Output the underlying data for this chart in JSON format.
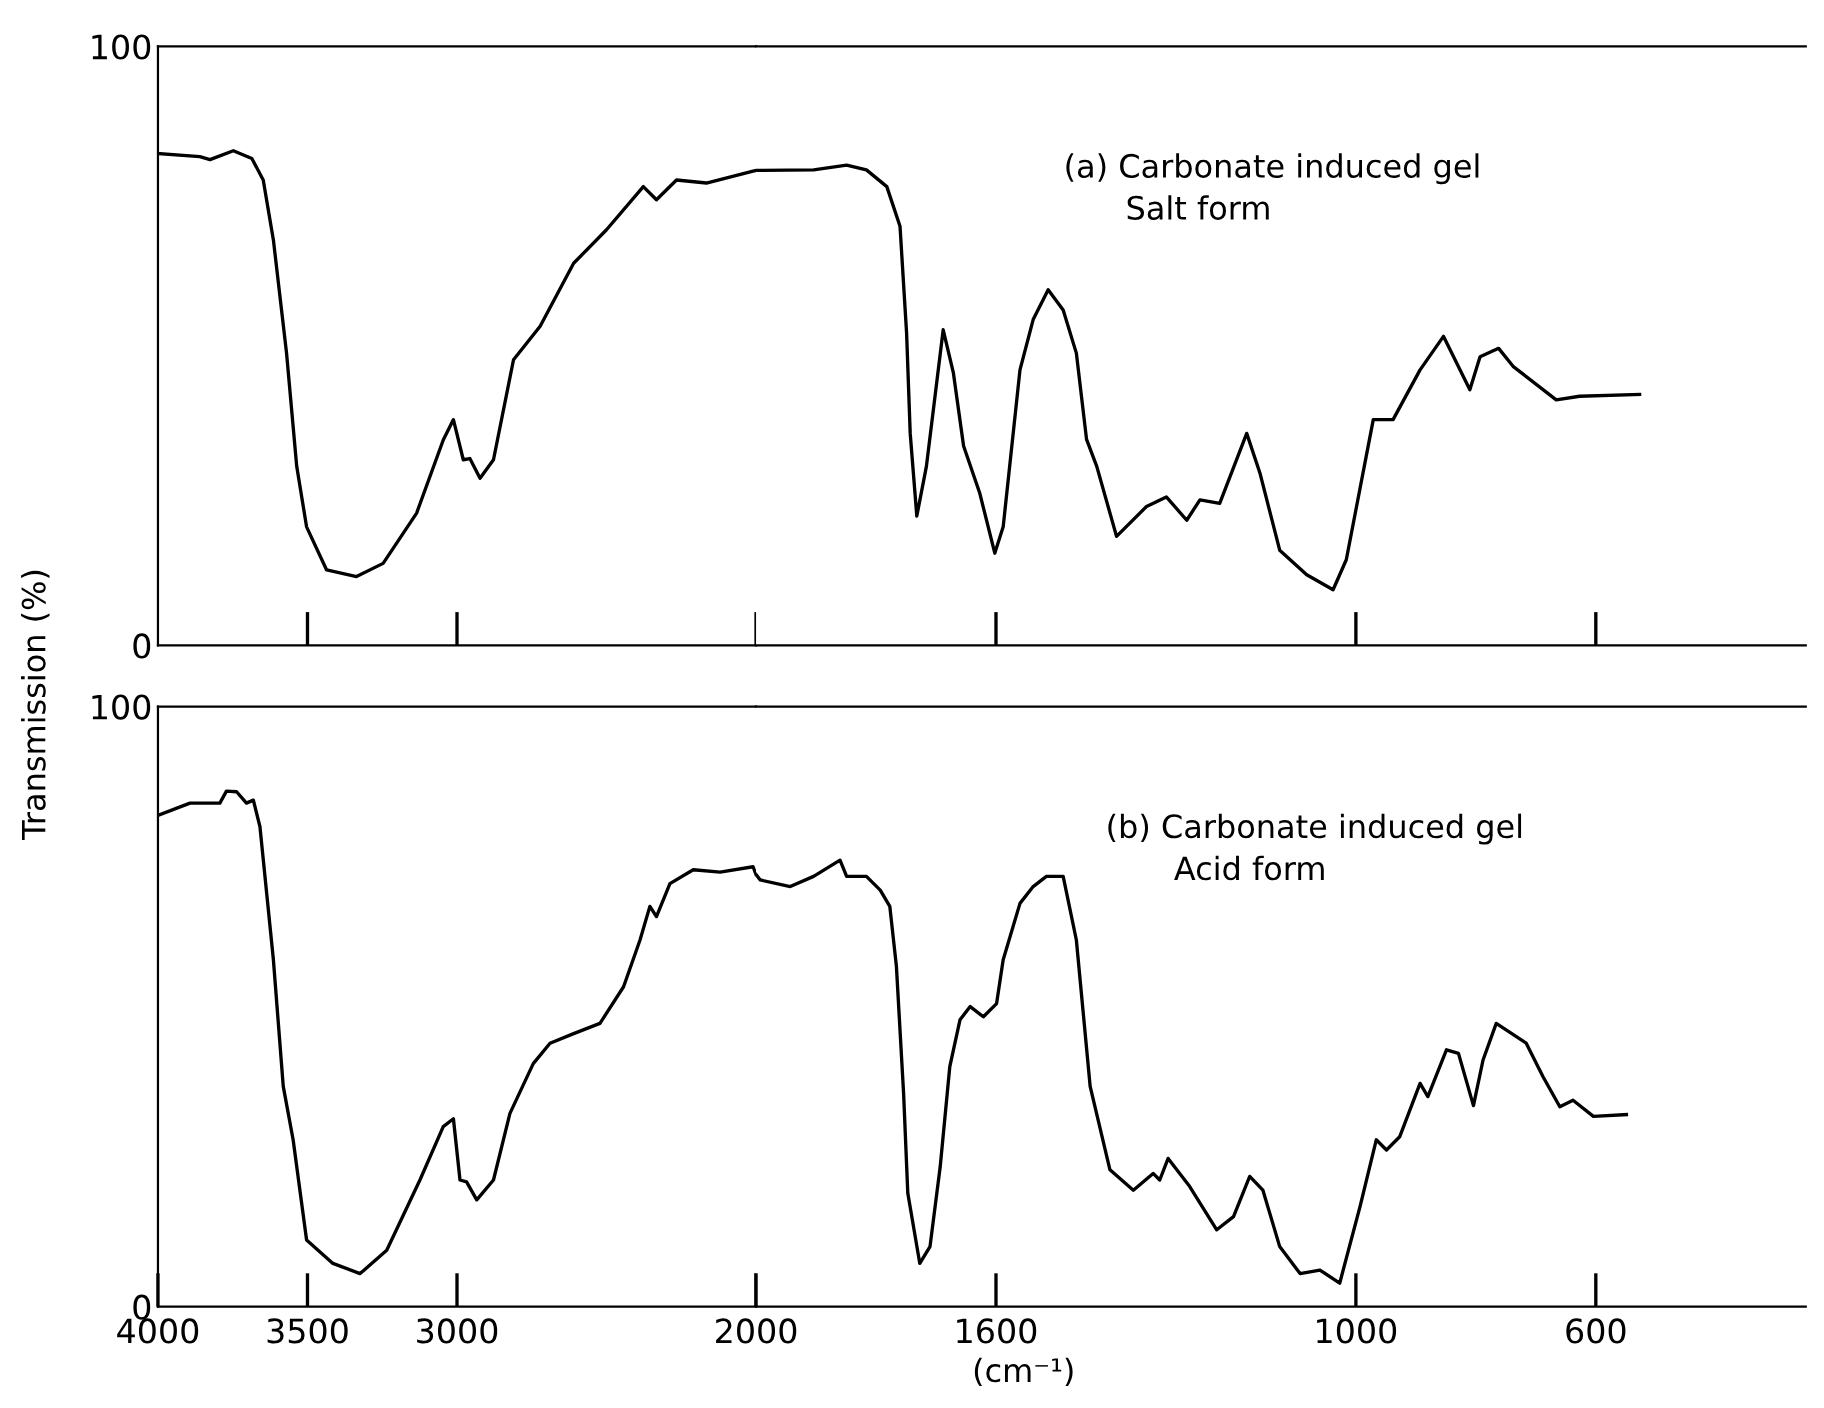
{
  "chart_data": [
    {
      "type": "line",
      "ylabel": "Transmission (%)",
      "xlim": [
        4000,
        2000
      ],
      "ylim": [
        0,
        100
      ],
      "xticks": [
        {
          "value": 3500,
          "label": null
        },
        {
          "value": 3000,
          "label": null
        },
        {
          "value": 2000,
          "label": null
        }
      ],
      "yticks": [
        0,
        100
      ],
      "tick_labels": "y",
      "series": [
        {
          "color": "#000000",
          "x": [
            3993,
            3860,
            3826,
            3748,
            3686,
            3648,
            3614,
            3570,
            3536,
            3503,
            3436,
            3336,
            3247,
            3135,
            3046,
            3012,
            2979,
            2957,
            2923,
            2878,
            2811,
            2722,
            2610,
            2500,
            2377,
            2333,
            2266,
            2166,
            2010,
            2000
          ],
          "values": [
            82.1,
            81.6,
            81.1,
            82.6,
            81.3,
            77.7,
            67.7,
            48.8,
            29.9,
            19.8,
            12.6,
            11.5,
            13.7,
            22.1,
            34.3,
            37.7,
            31.0,
            31.2,
            27.9,
            31.0,
            47.7,
            53.3,
            63.8,
            69.4,
            76.6,
            74.4,
            77.7,
            77.2,
            79.2,
            79.3
          ]
        }
      ]
    },
    {
      "type": "line",
      "annotations": [
        "(a) Carbonate induced gel",
        "Salt form"
      ],
      "xlim": [
        2000,
        250
      ],
      "ylim": [
        0,
        100
      ],
      "xticks": [
        {
          "value": 1600,
          "label": null
        },
        {
          "value": 1000,
          "label": null
        },
        {
          "value": 600,
          "label": null
        }
      ],
      "tick_labels": false,
      "series": [
        {
          "color": "#000000",
          "x": [
            2000,
            1904,
            1849,
            1816,
            1782,
            1760,
            1749,
            1743,
            1732,
            1716,
            1688,
            1671,
            1654,
            1627,
            1602,
            1588,
            1560,
            1538,
            1513,
            1488,
            1466,
            1449,
            1432,
            1399,
            1349,
            1316,
            1282,
            1260,
            1227,
            1182,
            1160,
            1127,
            1082,
            1038,
            1016,
            971,
            938,
            893,
            854,
            810,
            793,
            762,
            738,
            666,
            627,
            527
          ],
          "values": [
            79.3,
            79.4,
            80.2,
            79.4,
            76.6,
            70.0,
            52.1,
            35.4,
            21.6,
            29.9,
            52.7,
            45.5,
            33.3,
            25.4,
            15.4,
            19.8,
            46.0,
            54.4,
            59.4,
            56.0,
            48.8,
            34.4,
            29.9,
            18.2,
            23.2,
            24.8,
            20.9,
            24.3,
            23.7,
            35.4,
            28.8,
            15.9,
            11.8,
            9.3,
            14.3,
            37.7,
            37.7,
            46.0,
            51.6,
            42.7,
            48.2,
            49.6,
            46.6,
            41.0,
            41.6,
            41.9
          ]
        }
      ]
    },
    {
      "type": "line",
      "xlim": [
        4000,
        2000
      ],
      "ylim": [
        0,
        100
      ],
      "xticks": [
        4000,
        3500,
        3000,
        {
          "value": 2000,
          "label": null
        }
      ],
      "yticks": [
        0,
        100
      ],
      "series": [
        {
          "color": "#000000",
          "x": [
            3993,
            3893,
            3793,
            3771,
            3737,
            3704,
            3681,
            3659,
            3614,
            3581,
            3548,
            3503,
            3415,
            3324,
            3235,
            3124,
            3046,
            3012,
            2990,
            2968,
            2934,
            2878,
            2823,
            2745,
            2689,
            2610,
            2522,
            2443,
            2388,
            2355,
            2333,
            2288,
            2210,
            2120,
            2010,
            2000
          ],
          "values": [
            82.0,
            83.9,
            83.9,
            85.9,
            85.8,
            83.9,
            84.4,
            80.0,
            57.8,
            36.7,
            27.8,
            11.1,
            7.2,
            5.5,
            9.4,
            21.1,
            30.0,
            31.3,
            21.1,
            20.8,
            17.8,
            21.1,
            32.2,
            40.5,
            43.9,
            45.5,
            47.2,
            53.3,
            61.1,
            66.7,
            65.0,
            70.5,
            72.8,
            72.4,
            73.3,
            72.0
          ]
        }
      ]
    },
    {
      "type": "line",
      "xlabel": "(cm⁻¹)",
      "annotations": [
        "(b) Carbonate induced gel",
        "Acid form"
      ],
      "xlim": [
        2000,
        250
      ],
      "ylim": [
        0,
        100
      ],
      "xticks": [
        2000,
        1600,
        1000,
        600
      ],
      "tick_labels": "x",
      "series": [
        {
          "color": "#000000",
          "x": [
            2000,
            1993,
            1943,
            1904,
            1860,
            1849,
            1816,
            1793,
            1777,
            1766,
            1754,
            1747,
            1727,
            1710,
            1693,
            1677,
            1660,
            1643,
            1621,
            1599,
            1588,
            1560,
            1538,
            1516,
            1488,
            1466,
            1443,
            1410,
            1371,
            1338,
            1327,
            1313,
            1277,
            1232,
            1204,
            1177,
            1155,
            1127,
            1093,
            1060,
            1027,
            993,
            966,
            949,
            927,
            893,
            880,
            849,
            829,
            804,
            788,
            766,
            716,
            688,
            660,
            638,
            604,
            549
          ],
          "values": [
            72.0,
            71.1,
            70.0,
            71.7,
            74.4,
            71.7,
            71.7,
            69.4,
            66.7,
            56.7,
            35.5,
            18.9,
            7.2,
            10.0,
            23.3,
            40.0,
            47.8,
            50.0,
            48.3,
            50.5,
            57.8,
            67.2,
            70.0,
            71.7,
            71.7,
            61.1,
            36.7,
            22.8,
            19.4,
            22.2,
            21.1,
            24.7,
            20.0,
            12.8,
            15.0,
            21.7,
            19.4,
            10.0,
            5.5,
            6.1,
            3.9,
            16.7,
            27.8,
            26.1,
            28.3,
            37.2,
            35.0,
            42.8,
            42.2,
            33.5,
            41.1,
            47.2,
            43.9,
            38.3,
            33.3,
            34.4,
            31.7,
            32.0
          ]
        }
      ]
    }
  ]
}
